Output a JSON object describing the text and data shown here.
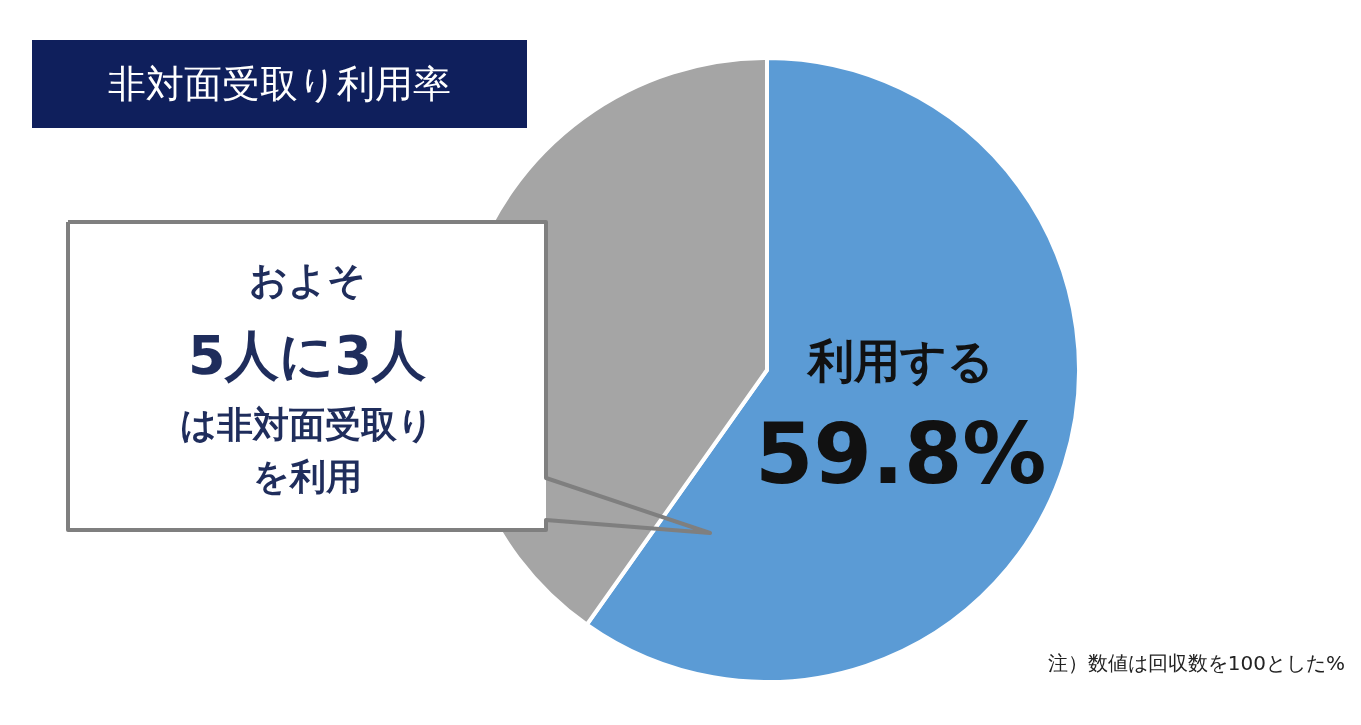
{
  "chart_data": {
    "type": "pie",
    "title": "非対面受取り利用率",
    "categories": [
      "利用する",
      null
    ],
    "values": [
      59.8,
      40.2
    ],
    "colors": [
      "#5b9bd5",
      "#a5a5a5"
    ],
    "value_labels": [
      "59.8%",
      null
    ],
    "annotations": [
      "およそ",
      "5人に3人",
      "は非対面受取り",
      "を利用",
      "注）数値は回収数を100とした%"
    ]
  }
}
